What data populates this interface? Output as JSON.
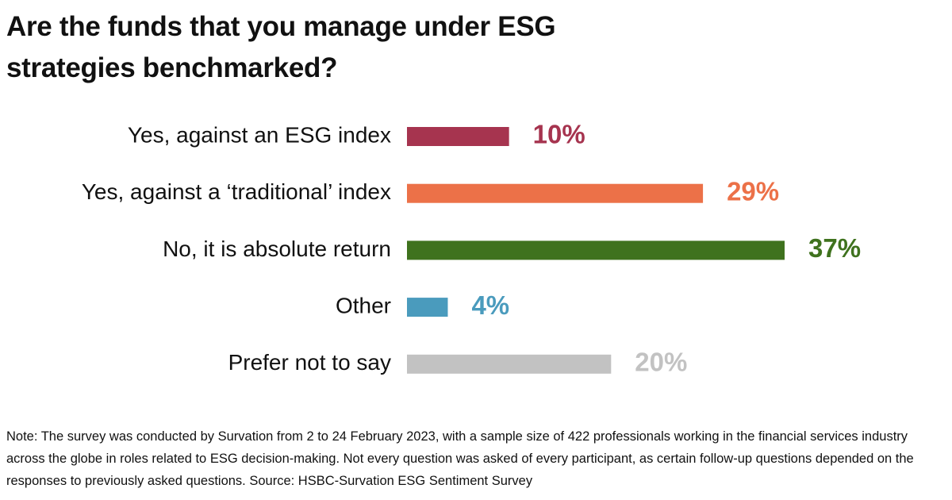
{
  "chart_data": {
    "type": "bar",
    "orientation": "horizontal",
    "title": "Are the funds that you manage under ESG strategies benchmarked?",
    "categories": [
      "Yes, against an ESG index",
      "Yes, against a ‘traditional’ index",
      "No, it is absolute return",
      "Other",
      "Prefer not to say"
    ],
    "values": [
      10,
      29,
      37,
      4,
      20
    ],
    "value_labels": [
      "10%",
      "29%",
      "37%",
      "4%",
      "20%"
    ],
    "colors": [
      "#a6344f",
      "#ec7148",
      "#3f721e",
      "#4a9bbd",
      "#c2c2c2"
    ],
    "note": "Note: The survey was conducted by Survation from 2 to 24 February 2023, with a sample size of 422 professionals working in the financial services industry across the globe in roles related to ESG decision-making. Not every question was asked of every participant, as certain follow-up questions depended on the responses to previously asked questions. Source: HSBC-Survation ESG Sentiment Survey"
  }
}
